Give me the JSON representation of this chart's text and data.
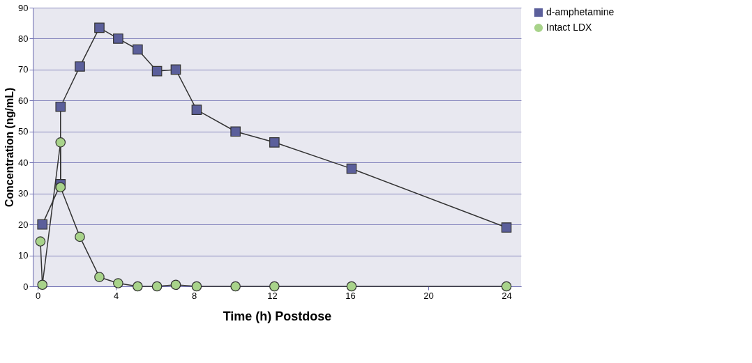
{
  "chart_data": {
    "type": "line",
    "xlabel": "Time (h) Postdose",
    "ylabel": "Concentration (ng/mL)",
    "xlim": [
      -0.25,
      24.75
    ],
    "xticks": [
      0,
      4,
      8,
      12,
      16,
      20,
      24
    ],
    "ylim": [
      0,
      90
    ],
    "yticks": [
      0,
      10,
      20,
      30,
      40,
      50,
      60,
      70,
      80,
      90
    ],
    "grid": "y",
    "legend": "right",
    "line_style": "solid",
    "series": [
      {
        "name": "d-amphetamine",
        "color": "#5b5f9b",
        "marker": "square",
        "x": [
          0.24,
          1.17,
          1.17,
          2.16,
          3.16,
          4.12,
          5.12,
          6.11,
          7.07,
          8.14,
          10.13,
          12.12,
          16.07,
          24.0
        ],
        "values": [
          20,
          33,
          58,
          71,
          83.5,
          80,
          76.5,
          69.5,
          70,
          57,
          50,
          46.5,
          38,
          19
        ]
      },
      {
        "name": "Intact LDX",
        "color": "#a8d38a",
        "marker": "circle",
        "x": [
          0.14,
          0.24,
          1.17,
          1.17,
          2.16,
          3.16,
          4.12,
          5.12,
          6.11,
          7.07,
          8.14,
          10.13,
          12.12,
          16.07,
          24.0
        ],
        "values": [
          14.5,
          0.5,
          46.5,
          32,
          16,
          3,
          1,
          0,
          0,
          0.5,
          0,
          0,
          0,
          0,
          0
        ]
      }
    ]
  }
}
